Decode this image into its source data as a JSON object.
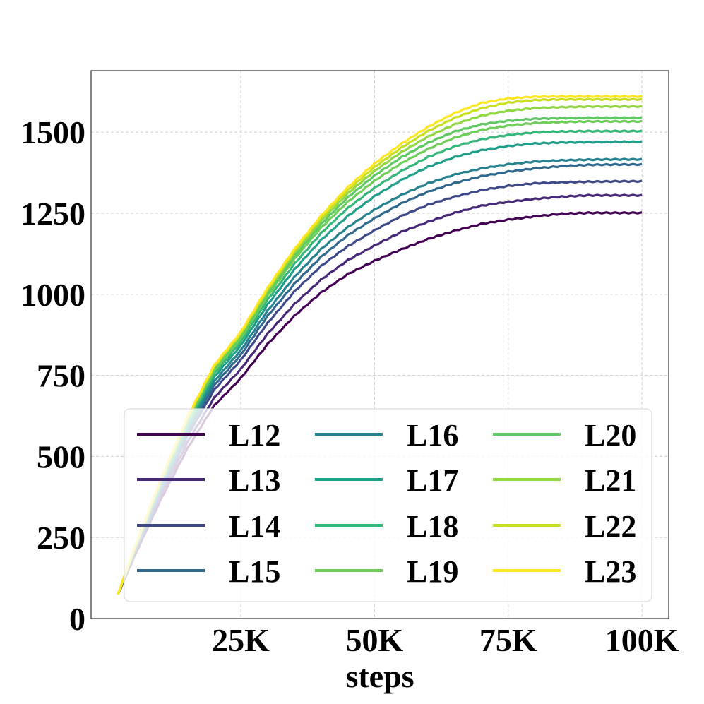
{
  "chart_data": {
    "type": "line",
    "title": "",
    "xlabel": "steps",
    "ylabel": "",
    "x_tick_labels": [
      {
        "value": 25000,
        "label": "25K"
      },
      {
        "value": 50000,
        "label": "50K"
      },
      {
        "value": 75000,
        "label": "75K"
      },
      {
        "value": 100000,
        "label": "100K"
      }
    ],
    "y_tick_labels": [
      {
        "value": 0,
        "label": "0"
      },
      {
        "value": 250,
        "label": "250"
      },
      {
        "value": 500,
        "label": "500"
      },
      {
        "value": 750,
        "label": "750"
      },
      {
        "value": 1000,
        "label": "1000"
      },
      {
        "value": 1250,
        "label": "1250"
      },
      {
        "value": 1500,
        "label": "1500"
      }
    ],
    "xlim": [
      -3000,
      105000
    ],
    "ylim": [
      0,
      1690
    ],
    "grid": true,
    "legend_position": "lower-right",
    "legend_columns": 3,
    "x": [
      5000,
      10000,
      15000,
      20000,
      25000,
      30000,
      35000,
      40000,
      45000,
      50000,
      55000,
      60000,
      65000,
      70000,
      75000,
      80000,
      85000,
      90000,
      95000,
      100000
    ],
    "series": [
      {
        "name": "L12",
        "color": "#440154",
        "values": [
          0,
          0,
          0,
          0,
          743,
          848,
          935,
          1007,
          1064,
          1105,
          1140,
          1172,
          1198,
          1219,
          1232,
          1242,
          1250,
          1253,
          1253,
          1253
        ]
      },
      {
        "name": "L13",
        "color": "#482878",
        "values": [
          0,
          0,
          0,
          0,
          771,
          880,
          971,
          1047,
          1107,
          1152,
          1194,
          1225,
          1253,
          1275,
          1287,
          1296,
          1303,
          1307,
          1307,
          1307
        ]
      },
      {
        "name": "L14",
        "color": "#3e4989",
        "values": [
          0,
          0,
          0,
          0,
          799,
          913,
          1010,
          1089,
          1150,
          1199,
          1243,
          1278,
          1303,
          1323,
          1336,
          1344,
          1347,
          1349,
          1350,
          1350
        ]
      },
      {
        "name": "L15",
        "color": "#31688e",
        "values": [
          0,
          0,
          0,
          0,
          815,
          935,
          1034,
          1117,
          1184,
          1236,
          1282,
          1318,
          1345,
          1366,
          1380,
          1390,
          1397,
          1401,
          1402,
          1402
        ]
      },
      {
        "name": "L16",
        "color": "#26828e",
        "values": [
          0,
          0,
          0,
          0,
          829,
          951,
          1055,
          1141,
          1209,
          1263,
          1308,
          1344,
          1371,
          1390,
          1403,
          1411,
          1415,
          1417,
          1418,
          1418
        ]
      },
      {
        "name": "L17",
        "color": "#1f9e89",
        "values": [
          0,
          0,
          0,
          0,
          844,
          970,
          1078,
          1169,
          1243,
          1304,
          1354,
          1395,
          1425,
          1446,
          1459,
          1467,
          1470,
          1471,
          1472,
          1472
        ]
      },
      {
        "name": "L18",
        "color": "#35b779",
        "values": [
          0,
          0,
          0,
          0,
          856,
          985,
          1095,
          1190,
          1268,
          1330,
          1382,
          1425,
          1458,
          1480,
          1493,
          1501,
          1504,
          1505,
          1505,
          1505
        ]
      },
      {
        "name": "L19",
        "color": "#6ece58",
        "values": [
          0,
          0,
          0,
          0,
          866,
          997,
          1110,
          1207,
          1287,
          1352,
          1406,
          1450,
          1485,
          1509,
          1522,
          1530,
          1533,
          1535,
          1535,
          1535
        ]
      },
      {
        "name": "L20",
        "color": "#5ec962",
        "values": [
          0,
          0,
          0,
          0,
          872,
          1005,
          1119,
          1218,
          1301,
          1368,
          1424,
          1469,
          1504,
          1526,
          1537,
          1543,
          1545,
          1546,
          1546,
          1546
        ]
      },
      {
        "name": "L21",
        "color": "#90d743",
        "values": [
          0,
          0,
          0,
          0,
          878,
          1012,
          1128,
          1228,
          1313,
          1382,
          1440,
          1488,
          1526,
          1553,
          1568,
          1576,
          1579,
          1581,
          1581,
          1581
        ]
      },
      {
        "name": "L22",
        "color": "#c8e020",
        "values": [
          0,
          0,
          0,
          0,
          882,
          1018,
          1135,
          1237,
          1323,
          1394,
          1454,
          1505,
          1546,
          1576,
          1593,
          1601,
          1603,
          1603,
          1603,
          1603
        ]
      },
      {
        "name": "L23",
        "color": "#fde725",
        "values": [
          0,
          0,
          0,
          0,
          886,
          1022,
          1141,
          1244,
          1332,
          1405,
          1466,
          1518,
          1561,
          1592,
          1606,
          1611,
          1612,
          1612,
          1612,
          1612
        ]
      }
    ],
    "early_segment": {
      "x": [
        2000,
        5000,
        10000,
        15000,
        20000,
        25000
      ],
      "start_value": 75
    }
  }
}
